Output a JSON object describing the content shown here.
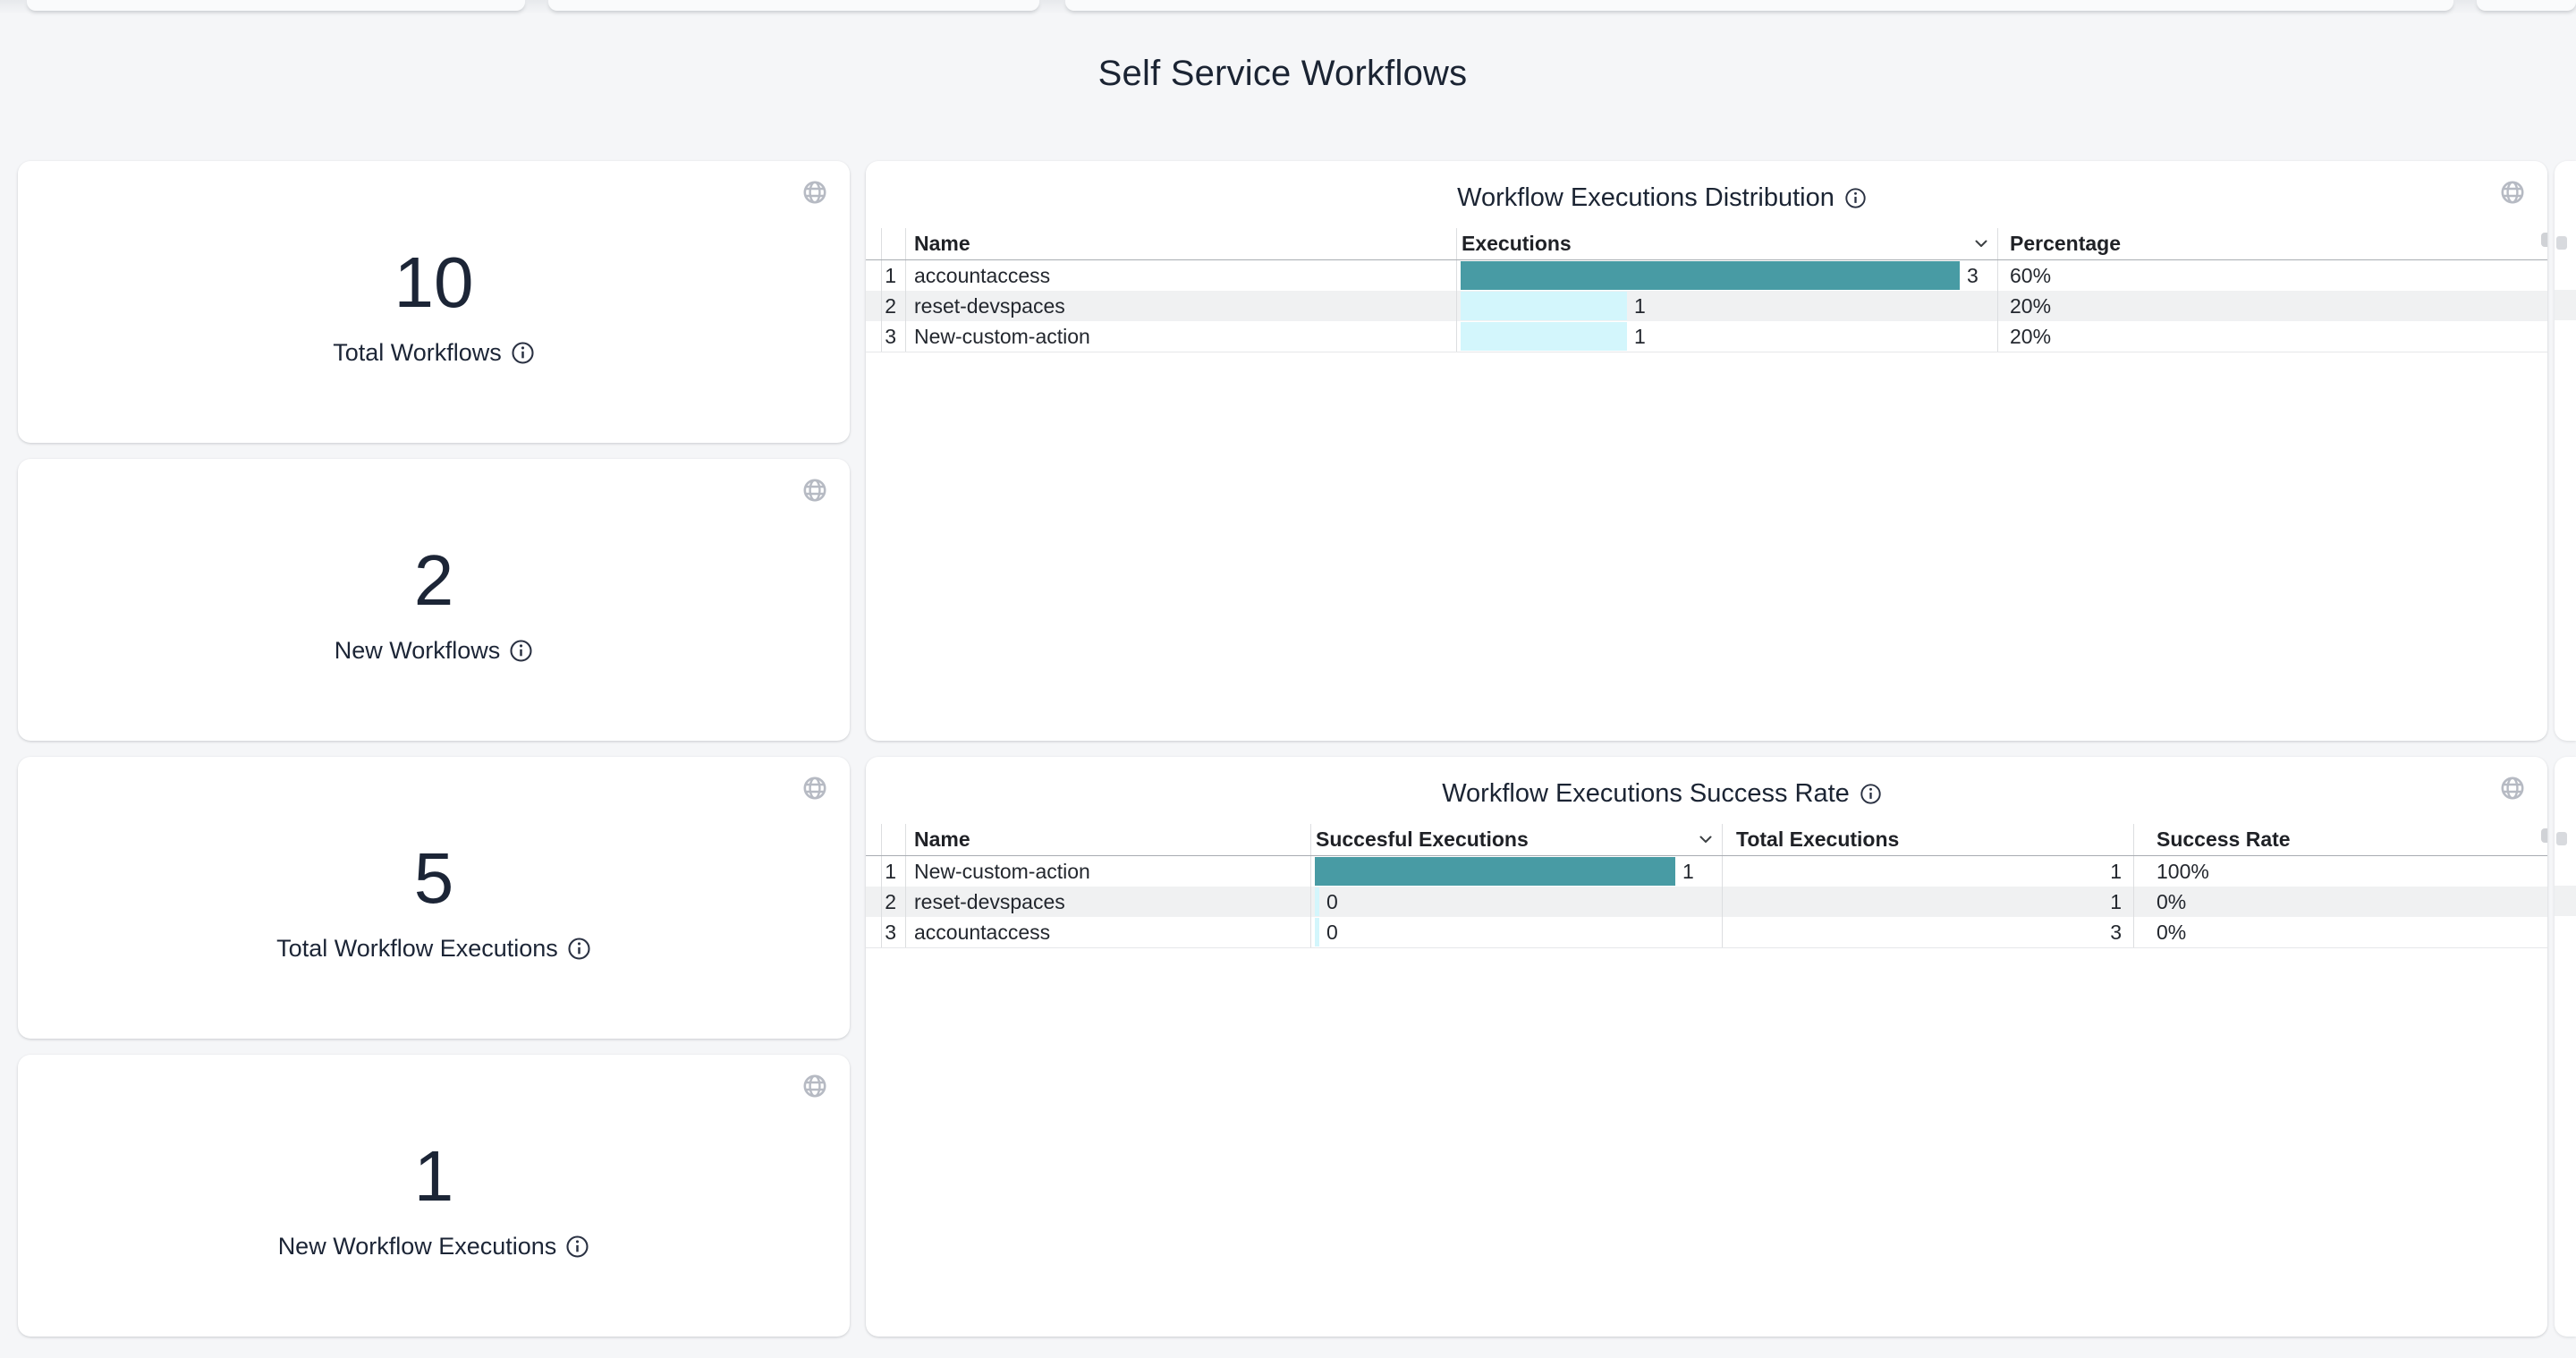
{
  "page": {
    "title": "Self Service Workflows"
  },
  "stat_cards": [
    {
      "value": "10",
      "label": "Total Workflows"
    },
    {
      "value": "2",
      "label": "New Workflows"
    },
    {
      "value": "5",
      "label": "Total Workflow Executions"
    },
    {
      "value": "1",
      "label": "New Workflow Executions"
    }
  ],
  "tables": {
    "distribution": {
      "title": "Workflow Executions Distribution",
      "headers": {
        "name": "Name",
        "executions": "Executions",
        "percentage": "Percentage"
      },
      "rows": [
        {
          "index": "1",
          "name": "accountaccess",
          "executions": "3",
          "percentage": "60%",
          "emphasis": true
        },
        {
          "index": "2",
          "name": "reset-devspaces",
          "executions": "1",
          "percentage": "20%",
          "emphasis": false
        },
        {
          "index": "3",
          "name": "New-custom-action",
          "executions": "1",
          "percentage": "20%",
          "emphasis": false
        }
      ]
    },
    "success_rate": {
      "title": "Workflow Executions Success Rate",
      "headers": {
        "name": "Name",
        "successful": "Succesful Executions",
        "total": "Total Executions",
        "rate": "Success Rate"
      },
      "rows": [
        {
          "index": "1",
          "name": "New-custom-action",
          "successful": "1",
          "total": "1",
          "rate": "100%",
          "emphasis": true
        },
        {
          "index": "2",
          "name": "reset-devspaces",
          "successful": "0",
          "total": "1",
          "rate": "0%",
          "emphasis": false
        },
        {
          "index": "3",
          "name": "accountaccess",
          "successful": "0",
          "total": "3",
          "rate": "0%",
          "emphasis": false
        }
      ]
    }
  },
  "chart_data": [
    {
      "type": "bar",
      "title": "Workflow Executions Distribution",
      "categories": [
        "accountaccess",
        "reset-devspaces",
        "New-custom-action"
      ],
      "values": [
        3,
        1,
        1
      ],
      "percentages": [
        "60%",
        "20%",
        "20%"
      ],
      "xlabel": "Executions",
      "ylabel": "Name",
      "xlim": [
        0,
        3.2
      ],
      "legend": "none"
    },
    {
      "type": "bar",
      "title": "Workflow Executions Success Rate",
      "categories": [
        "New-custom-action",
        "reset-devspaces",
        "accountaccess"
      ],
      "series": [
        {
          "name": "Succesful Executions",
          "values": [
            1,
            0,
            0
          ]
        },
        {
          "name": "Total Executions",
          "values": [
            1,
            1,
            3
          ]
        }
      ],
      "success_rates": [
        "100%",
        "0%",
        "0%"
      ],
      "xlim": [
        0,
        1.1
      ],
      "legend": "none"
    }
  ],
  "colors": {
    "bar_primary": "#489ba4",
    "bar_secondary": "#d3f6fc",
    "row_stripe": "#f0f1f2",
    "title_text": "#1b2433",
    "page_background": "#f5f6f8",
    "icon_gray": "#b6bac3"
  },
  "icons": {
    "card_action": "globe-icon",
    "label_help": "info-icon",
    "sort_indicator": "chevron-down-icon"
  }
}
